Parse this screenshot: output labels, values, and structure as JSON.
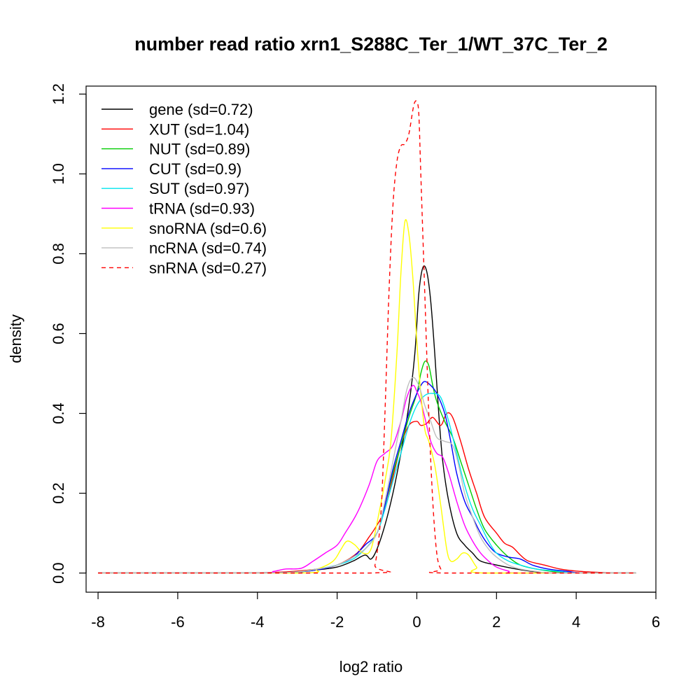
{
  "chart_data": {
    "type": "line",
    "title": "number read ratio xrn1_S288C_Ter_1/WT_37C_Ter_2",
    "xlabel": "log2 ratio",
    "ylabel": "density",
    "xlim": [
      -8.3,
      6
    ],
    "ylim": [
      -0.048,
      1.22
    ],
    "xticks": [
      -8,
      -6,
      -4,
      -2,
      0,
      2,
      4,
      6
    ],
    "yticks": [
      0.0,
      0.2,
      0.4,
      0.6,
      0.8,
      1.0,
      1.2
    ],
    "xtick_labels": [
      "-8",
      "-6",
      "-4",
      "-2",
      "0",
      "2",
      "4",
      "6"
    ],
    "ytick_labels": [
      "0.0",
      "0.2",
      "0.4",
      "0.6",
      "0.8",
      "1.0",
      "1.2"
    ],
    "grid": false,
    "legend_position": "top-left",
    "series": [
      {
        "name": "gene (sd=0.72)",
        "color": "#000000",
        "dash": "solid",
        "points": [
          [
            -8,
            0
          ],
          [
            -4.5,
            0
          ],
          [
            -3,
            0.003
          ],
          [
            -2.5,
            0.008
          ],
          [
            -2,
            0.015
          ],
          [
            -1.6,
            0.03
          ],
          [
            -1.3,
            0.045
          ],
          [
            -1.15,
            0.035
          ],
          [
            -1,
            0.06
          ],
          [
            -0.8,
            0.12
          ],
          [
            -0.6,
            0.2
          ],
          [
            -0.4,
            0.3
          ],
          [
            -0.2,
            0.42
          ],
          [
            -0.05,
            0.55
          ],
          [
            0.05,
            0.7
          ],
          [
            0.15,
            0.765
          ],
          [
            0.25,
            0.755
          ],
          [
            0.35,
            0.68
          ],
          [
            0.45,
            0.55
          ],
          [
            0.55,
            0.4
          ],
          [
            0.65,
            0.28
          ],
          [
            0.8,
            0.18
          ],
          [
            1,
            0.1
          ],
          [
            1.2,
            0.07
          ],
          [
            1.4,
            0.05
          ],
          [
            1.6,
            0.03
          ],
          [
            2,
            0.02
          ],
          [
            2.5,
            0.01
          ],
          [
            3,
            0.003
          ],
          [
            3.5,
            0
          ],
          [
            5.5,
            0
          ]
        ]
      },
      {
        "name": "XUT (sd=1.04)",
        "color": "#ff0000",
        "dash": "solid",
        "points": [
          [
            -8,
            0
          ],
          [
            -4.5,
            0
          ],
          [
            -3.5,
            0.002
          ],
          [
            -3,
            0.005
          ],
          [
            -2.5,
            0.01
          ],
          [
            -2,
            0.02
          ],
          [
            -1.5,
            0.05
          ],
          [
            -1.2,
            0.09
          ],
          [
            -1,
            0.12
          ],
          [
            -0.8,
            0.16
          ],
          [
            -0.6,
            0.24
          ],
          [
            -0.4,
            0.32
          ],
          [
            -0.2,
            0.37
          ],
          [
            0,
            0.38
          ],
          [
            0.1,
            0.37
          ],
          [
            0.25,
            0.375
          ],
          [
            0.4,
            0.39
          ],
          [
            0.6,
            0.37
          ],
          [
            0.75,
            0.4
          ],
          [
            0.9,
            0.39
          ],
          [
            1.1,
            0.33
          ],
          [
            1.3,
            0.26
          ],
          [
            1.5,
            0.2
          ],
          [
            1.7,
            0.14
          ],
          [
            2,
            0.1
          ],
          [
            2.2,
            0.075
          ],
          [
            2.4,
            0.065
          ],
          [
            2.6,
            0.045
          ],
          [
            2.8,
            0.03
          ],
          [
            3.2,
            0.02
          ],
          [
            3.6,
            0.01
          ],
          [
            4,
            0.005
          ],
          [
            4.5,
            0.002
          ],
          [
            5,
            0
          ],
          [
            5.5,
            0
          ]
        ]
      },
      {
        "name": "NUT (sd=0.89)",
        "color": "#00cc00",
        "dash": "solid",
        "points": [
          [
            -8,
            0
          ],
          [
            -4,
            0
          ],
          [
            -3,
            0.003
          ],
          [
            -2.5,
            0.01
          ],
          [
            -2,
            0.02
          ],
          [
            -1.6,
            0.04
          ],
          [
            -1.3,
            0.06
          ],
          [
            -1,
            0.1
          ],
          [
            -0.8,
            0.17
          ],
          [
            -0.6,
            0.25
          ],
          [
            -0.4,
            0.32
          ],
          [
            -0.2,
            0.39
          ],
          [
            0,
            0.45
          ],
          [
            0.1,
            0.5
          ],
          [
            0.2,
            0.53
          ],
          [
            0.3,
            0.52
          ],
          [
            0.4,
            0.47
          ],
          [
            0.5,
            0.43
          ],
          [
            0.7,
            0.38
          ],
          [
            0.9,
            0.34
          ],
          [
            1.1,
            0.28
          ],
          [
            1.3,
            0.22
          ],
          [
            1.5,
            0.16
          ],
          [
            1.7,
            0.11
          ],
          [
            2,
            0.07
          ],
          [
            2.3,
            0.04
          ],
          [
            2.6,
            0.02
          ],
          [
            3,
            0.01
          ],
          [
            3.5,
            0.003
          ],
          [
            4,
            0
          ],
          [
            5.5,
            0
          ]
        ]
      },
      {
        "name": "CUT (sd=0.9)",
        "color": "#0000ff",
        "dash": "solid",
        "points": [
          [
            -8,
            0
          ],
          [
            -4,
            0
          ],
          [
            -3,
            0.003
          ],
          [
            -2.5,
            0.008
          ],
          [
            -2,
            0.02
          ],
          [
            -1.6,
            0.04
          ],
          [
            -1.3,
            0.07
          ],
          [
            -1,
            0.1
          ],
          [
            -0.8,
            0.17
          ],
          [
            -0.6,
            0.26
          ],
          [
            -0.4,
            0.33
          ],
          [
            -0.2,
            0.4
          ],
          [
            0,
            0.45
          ],
          [
            0.1,
            0.47
          ],
          [
            0.2,
            0.48
          ],
          [
            0.35,
            0.47
          ],
          [
            0.5,
            0.45
          ],
          [
            0.7,
            0.4
          ],
          [
            0.85,
            0.33
          ],
          [
            1,
            0.25
          ],
          [
            1.2,
            0.18
          ],
          [
            1.4,
            0.14
          ],
          [
            1.6,
            0.1
          ],
          [
            1.8,
            0.07
          ],
          [
            2,
            0.05
          ],
          [
            2.3,
            0.04
          ],
          [
            2.6,
            0.035
          ],
          [
            2.9,
            0.02
          ],
          [
            3.3,
            0.01
          ],
          [
            3.8,
            0.004
          ],
          [
            4.2,
            0
          ],
          [
            5.5,
            0
          ]
        ]
      },
      {
        "name": "SUT (sd=0.97)",
        "color": "#00e5ee",
        "dash": "solid",
        "points": [
          [
            -8,
            0
          ],
          [
            -4,
            0
          ],
          [
            -3,
            0.003
          ],
          [
            -2.5,
            0.01
          ],
          [
            -2,
            0.02
          ],
          [
            -1.6,
            0.035
          ],
          [
            -1.3,
            0.06
          ],
          [
            -1,
            0.1
          ],
          [
            -0.8,
            0.16
          ],
          [
            -0.6,
            0.23
          ],
          [
            -0.4,
            0.3
          ],
          [
            -0.2,
            0.37
          ],
          [
            0,
            0.42
          ],
          [
            0.2,
            0.445
          ],
          [
            0.4,
            0.45
          ],
          [
            0.6,
            0.44
          ],
          [
            0.8,
            0.38
          ],
          [
            1,
            0.3
          ],
          [
            1.2,
            0.22
          ],
          [
            1.4,
            0.16
          ],
          [
            1.6,
            0.12
          ],
          [
            1.8,
            0.08
          ],
          [
            2,
            0.05
          ],
          [
            2.3,
            0.03
          ],
          [
            2.6,
            0.02
          ],
          [
            3,
            0.01
          ],
          [
            3.5,
            0.005
          ],
          [
            4,
            0
          ],
          [
            5.5,
            0
          ]
        ]
      },
      {
        "name": "tRNA (sd=0.93)",
        "color": "#ff00ff",
        "dash": "solid",
        "points": [
          [
            -8,
            0
          ],
          [
            -4,
            0
          ],
          [
            -3.6,
            0.004
          ],
          [
            -3.3,
            0.01
          ],
          [
            -2.9,
            0.012
          ],
          [
            -2.6,
            0.03
          ],
          [
            -2.3,
            0.05
          ],
          [
            -2,
            0.07
          ],
          [
            -1.8,
            0.1
          ],
          [
            -1.5,
            0.15
          ],
          [
            -1.2,
            0.22
          ],
          [
            -1,
            0.28
          ],
          [
            -0.8,
            0.3
          ],
          [
            -0.6,
            0.32
          ],
          [
            -0.4,
            0.38
          ],
          [
            -0.25,
            0.44
          ],
          [
            -0.1,
            0.47
          ],
          [
            0,
            0.455
          ],
          [
            0.1,
            0.43
          ],
          [
            0.2,
            0.39
          ],
          [
            0.35,
            0.33
          ],
          [
            0.5,
            0.3
          ],
          [
            0.65,
            0.29
          ],
          [
            0.8,
            0.25
          ],
          [
            1,
            0.18
          ],
          [
            1.2,
            0.12
          ],
          [
            1.4,
            0.08
          ],
          [
            1.6,
            0.05
          ],
          [
            1.8,
            0.03
          ],
          [
            2,
            0.015
          ],
          [
            2.3,
            0.005
          ],
          [
            2.6,
            0
          ],
          [
            5.5,
            0
          ]
        ]
      },
      {
        "name": "snoRNA (sd=0.6)",
        "color": "#ffff00",
        "dash": "solid",
        "points": [
          [
            -8,
            0
          ],
          [
            -3,
            0
          ],
          [
            -2.5,
            0.01
          ],
          [
            -2.1,
            0.03
          ],
          [
            -1.9,
            0.06
          ],
          [
            -1.75,
            0.08
          ],
          [
            -1.55,
            0.07
          ],
          [
            -1.35,
            0.05
          ],
          [
            -1.15,
            0.06
          ],
          [
            -0.95,
            0.15
          ],
          [
            -0.8,
            0.23
          ],
          [
            -0.65,
            0.33
          ],
          [
            -0.5,
            0.55
          ],
          [
            -0.4,
            0.75
          ],
          [
            -0.3,
            0.88
          ],
          [
            -0.2,
            0.85
          ],
          [
            -0.1,
            0.74
          ],
          [
            0,
            0.58
          ],
          [
            0.1,
            0.45
          ],
          [
            0.2,
            0.36
          ],
          [
            0.3,
            0.33
          ],
          [
            0.45,
            0.27
          ],
          [
            0.6,
            0.17
          ],
          [
            0.75,
            0.06
          ],
          [
            0.85,
            0.03
          ],
          [
            1,
            0.035
          ],
          [
            1.15,
            0.05
          ],
          [
            1.3,
            0.045
          ],
          [
            1.5,
            0.015
          ],
          [
            1.7,
            0
          ],
          [
            5.5,
            0
          ]
        ]
      },
      {
        "name": "ncRNA (sd=0.74)",
        "color": "#bebebe",
        "dash": "solid",
        "points": [
          [
            -8,
            0
          ],
          [
            -4,
            0
          ],
          [
            -3,
            0.003
          ],
          [
            -2.5,
            0.01
          ],
          [
            -2,
            0.02
          ],
          [
            -1.6,
            0.04
          ],
          [
            -1.3,
            0.06
          ],
          [
            -1,
            0.1
          ],
          [
            -0.8,
            0.18
          ],
          [
            -0.6,
            0.28
          ],
          [
            -0.4,
            0.38
          ],
          [
            -0.25,
            0.46
          ],
          [
            -0.1,
            0.49
          ],
          [
            0.05,
            0.47
          ],
          [
            0.2,
            0.42
          ],
          [
            0.35,
            0.38
          ],
          [
            0.5,
            0.34
          ],
          [
            0.7,
            0.33
          ],
          [
            0.9,
            0.32
          ],
          [
            1.05,
            0.27
          ],
          [
            1.2,
            0.2
          ],
          [
            1.4,
            0.14
          ],
          [
            1.6,
            0.09
          ],
          [
            1.8,
            0.06
          ],
          [
            2,
            0.04
          ],
          [
            2.3,
            0.02
          ],
          [
            2.6,
            0.01
          ],
          [
            3,
            0.004
          ],
          [
            3.5,
            0
          ],
          [
            5.5,
            0
          ]
        ]
      },
      {
        "name": "snRNA (sd=0.27)",
        "color": "#ff0000",
        "dash": "dashed",
        "points": [
          [
            -8,
            0
          ],
          [
            -1.2,
            0
          ],
          [
            -1.05,
            0.02
          ],
          [
            -0.9,
            0.15
          ],
          [
            -0.8,
            0.4
          ],
          [
            -0.7,
            0.7
          ],
          [
            -0.6,
            0.92
          ],
          [
            -0.5,
            1.03
          ],
          [
            -0.4,
            1.07
          ],
          [
            -0.3,
            1.075
          ],
          [
            -0.2,
            1.1
          ],
          [
            -0.1,
            1.16
          ],
          [
            -0.05,
            1.18
          ],
          [
            0,
            1.18
          ],
          [
            0.05,
            1.15
          ],
          [
            0.1,
            1.0
          ],
          [
            0.2,
            0.7
          ],
          [
            0.3,
            0.4
          ],
          [
            0.4,
            0.18
          ],
          [
            0.5,
            0.05
          ],
          [
            0.6,
            0.01
          ],
          [
            0.7,
            0
          ],
          [
            5.5,
            0
          ]
        ]
      }
    ]
  }
}
